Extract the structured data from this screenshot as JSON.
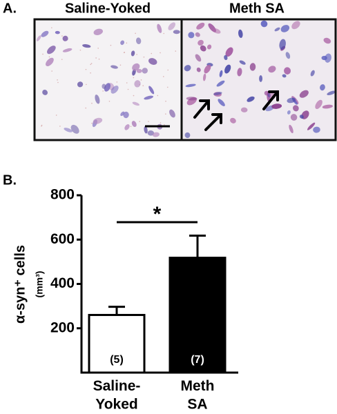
{
  "panel_a": {
    "label": "A.",
    "titles": [
      "Saline-Yoked",
      "Meth SA"
    ]
  },
  "chart_data": {
    "type": "bar",
    "panel_label": "B.",
    "y_label": "α-syn⁺ cells",
    "y_unit": "(mm³)",
    "categories": [
      "Saline-\nYoked",
      "Meth\nSA"
    ],
    "values": [
      260,
      518
    ],
    "errors": [
      37,
      100
    ],
    "colors": [
      "#ffffff",
      "#000000"
    ],
    "n_labels": [
      "(5)",
      "(7)"
    ],
    "n_label_colors": [
      "#000000",
      "#ffffff"
    ],
    "significance": "*",
    "ylim": [
      0,
      800
    ],
    "yticks": [
      200,
      400,
      600,
      800
    ]
  }
}
